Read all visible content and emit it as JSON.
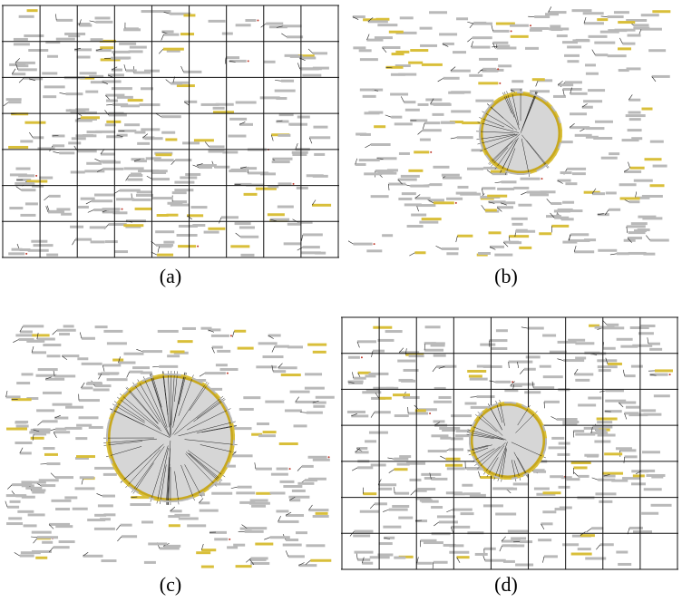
{
  "panels": [
    {
      "id": "a",
      "caption": "(a)",
      "grid": true,
      "lens": "none"
    },
    {
      "id": "b",
      "caption": "(b)",
      "grid": false,
      "lens": "small"
    },
    {
      "id": "c",
      "caption": "(c)",
      "grid": false,
      "lens": "large"
    },
    {
      "id": "d",
      "caption": "(d)",
      "grid": true,
      "lens": "small"
    }
  ],
  "colors": {
    "label": "#b9b9b9",
    "highlight": "#d9bf3a",
    "grid": "#111111",
    "lens_fill": "#d6d6d6",
    "lens_ring": "#c8a81e",
    "leader": "#222222",
    "accent_dot": "#c0392b"
  }
}
